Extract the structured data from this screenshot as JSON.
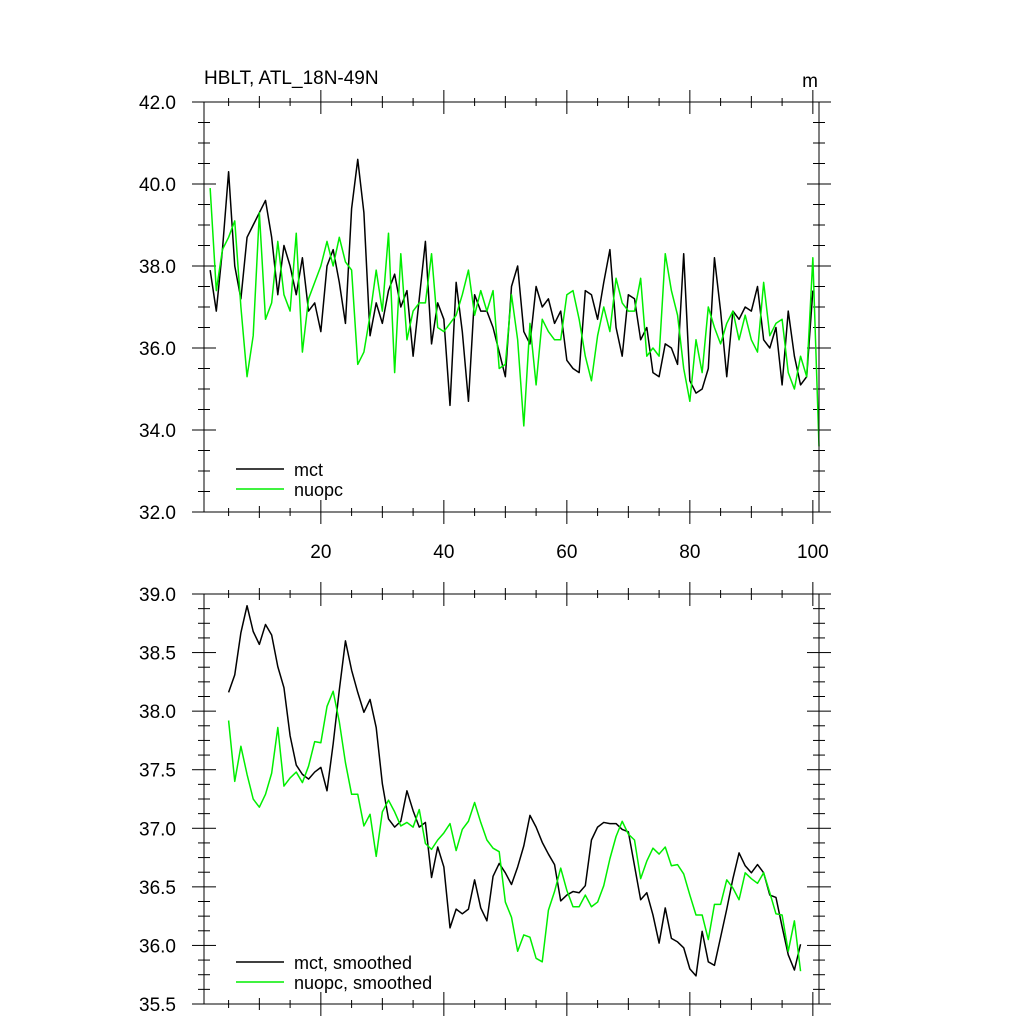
{
  "chart_data": [
    {
      "type": "line",
      "title": "HBLT, ATL_18N-49N",
      "unit_label": "m",
      "xlim": [
        1,
        101
      ],
      "ylim": [
        32.0,
        42.0
      ],
      "x_ticks": [
        20,
        40,
        60,
        80,
        100
      ],
      "y_ticks": [
        "32.0",
        "34.0",
        "36.0",
        "38.0",
        "40.0",
        "42.0"
      ],
      "x_start": 2,
      "series": [
        {
          "name": "mct",
          "color": "#000000",
          "values": [
            37.9,
            36.9,
            38.4,
            40.3,
            38.0,
            37.2,
            38.7,
            39.0,
            39.3,
            39.6,
            38.7,
            37.3,
            38.5,
            38.0,
            37.3,
            38.2,
            36.9,
            37.1,
            36.4,
            38.0,
            38.4,
            37.6,
            36.6,
            39.4,
            40.6,
            39.3,
            36.3,
            37.1,
            36.6,
            37.4,
            37.8,
            37.0,
            37.4,
            35.8,
            37.2,
            38.6,
            36.1,
            37.1,
            36.7,
            34.6,
            37.6,
            36.4,
            34.7,
            37.3,
            36.9,
            36.9,
            36.5,
            35.9,
            35.3,
            37.5,
            38.0,
            36.4,
            36.1,
            37.5,
            37.0,
            37.2,
            36.6,
            36.9,
            35.7,
            35.5,
            35.4,
            37.4,
            37.3,
            36.7,
            37.6,
            38.4,
            36.5,
            35.8,
            37.3,
            37.2,
            36.2,
            36.5,
            35.4,
            35.3,
            36.1,
            36.0,
            35.6,
            38.3,
            35.2,
            34.9,
            35.0,
            35.5,
            38.2,
            36.9,
            35.3,
            36.9,
            36.7,
            37.0,
            36.9,
            37.5,
            36.2,
            36.0,
            36.5,
            35.1,
            36.9,
            35.8,
            35.1,
            35.3,
            37.4
          ]
        },
        {
          "name": "nuopc",
          "color": "#00ee00",
          "values": [
            39.9,
            37.4,
            38.4,
            38.7,
            39.1,
            37.0,
            35.3,
            36.3,
            39.3,
            36.7,
            37.1,
            38.6,
            37.3,
            36.9,
            38.8,
            35.9,
            37.2,
            37.6,
            38.0,
            38.6,
            38.0,
            38.7,
            38.1,
            37.9,
            35.6,
            35.9,
            36.8,
            37.9,
            36.9,
            38.8,
            35.4,
            38.3,
            36.2,
            36.9,
            37.1,
            37.1,
            38.3,
            36.5,
            36.4,
            36.6,
            36.8,
            37.3,
            37.9,
            36.8,
            37.4,
            36.9,
            37.4,
            35.5,
            35.6,
            37.3,
            36.2,
            34.1,
            36.6,
            35.1,
            36.7,
            36.4,
            36.2,
            36.2,
            37.3,
            37.4,
            36.7,
            35.8,
            35.2,
            36.3,
            37.0,
            36.4,
            37.7,
            37.1,
            36.9,
            36.9,
            37.7,
            35.8,
            36.0,
            35.8,
            38.3,
            37.4,
            36.8,
            35.5,
            34.7,
            36.2,
            35.4,
            37.0,
            36.5,
            36.1,
            36.6,
            36.9,
            36.2,
            36.8,
            36.2,
            35.9,
            37.6,
            36.3,
            36.6,
            36.7,
            35.4,
            35.0,
            35.8,
            35.3,
            38.2,
            33.6
          ]
        }
      ],
      "legend": "bottom-left"
    },
    {
      "type": "line",
      "xlim": [
        1,
        101
      ],
      "ylim": [
        35.5,
        39.0
      ],
      "x_ticks": [
        20,
        40,
        60,
        80,
        100
      ],
      "y_ticks": [
        "35.5",
        "36.0",
        "36.5",
        "37.0",
        "37.5",
        "38.0",
        "38.5",
        "39.0"
      ],
      "x_start": 5,
      "series": [
        {
          "name": "mct, smoothed",
          "color": "#000000",
          "values": [
            38.16,
            38.31,
            38.67,
            38.9,
            38.68,
            38.57,
            38.74,
            38.65,
            38.38,
            38.2,
            37.79,
            37.54,
            37.46,
            37.42,
            37.48,
            37.52,
            37.32,
            37.72,
            38.18,
            38.6,
            38.35,
            38.16,
            37.99,
            38.1,
            37.86,
            37.38,
            37.08,
            37.01,
            37.06,
            37.32,
            37.15,
            37.01,
            37.05,
            36.58,
            36.84,
            36.67,
            36.15,
            36.31,
            36.27,
            36.31,
            36.56,
            36.32,
            36.21,
            36.59,
            36.7,
            36.62,
            36.52,
            36.67,
            36.85,
            37.11,
            37.01,
            36.88,
            36.78,
            36.69,
            36.38,
            36.43,
            36.46,
            36.45,
            36.51,
            36.9,
            37.01,
            37.05,
            37.04,
            37.04,
            36.99,
            36.97,
            36.68,
            36.39,
            36.45,
            36.26,
            36.02,
            36.32,
            36.06,
            36.03,
            35.98,
            35.8,
            35.74,
            36.12,
            35.86,
            35.83,
            36.07,
            36.31,
            36.57,
            36.79,
            36.68,
            36.62,
            36.69,
            36.62,
            36.43,
            36.41,
            36.16,
            35.92,
            35.79,
            36.01
          ]
        },
        {
          "name": "nuopc, smoothed",
          "color": "#00ee00",
          "values": [
            37.92,
            37.4,
            37.7,
            37.46,
            37.25,
            37.18,
            37.29,
            37.47,
            37.86,
            37.36,
            37.43,
            37.48,
            37.39,
            37.53,
            37.74,
            37.73,
            38.04,
            38.17,
            37.91,
            37.56,
            37.29,
            37.29,
            37.02,
            37.12,
            36.76,
            37.14,
            37.24,
            37.14,
            37.02,
            37.05,
            37.01,
            37.16,
            36.87,
            36.82,
            36.9,
            36.96,
            37.04,
            36.81,
            36.99,
            37.06,
            37.22,
            37.05,
            36.9,
            36.83,
            36.8,
            36.37,
            36.24,
            35.95,
            36.09,
            36.07,
            35.89,
            35.86,
            36.3,
            36.46,
            36.66,
            36.47,
            36.33,
            36.33,
            36.43,
            36.33,
            36.37,
            36.51,
            36.74,
            36.93,
            37.06,
            36.95,
            36.9,
            36.57,
            36.72,
            36.83,
            36.78,
            36.84,
            36.68,
            36.69,
            36.61,
            36.43,
            36.26,
            36.26,
            36.05,
            36.35,
            36.35,
            36.56,
            36.49,
            36.39,
            36.62,
            36.57,
            36.53,
            36.62,
            36.45,
            36.27,
            36.26,
            35.95,
            36.21,
            35.78
          ]
        }
      ],
      "legend": "bottom-left"
    }
  ]
}
